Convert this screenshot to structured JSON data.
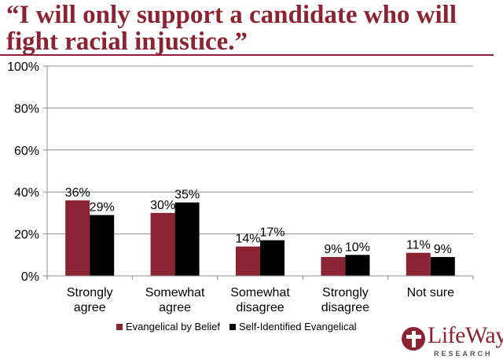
{
  "chart_data": {
    "type": "bar",
    "title": "“I will only support a candidate who will fight racial injustice.”",
    "categories": [
      [
        "Strongly",
        "agree"
      ],
      [
        "Somewhat",
        "agree"
      ],
      [
        "Somewhat",
        "disagree"
      ],
      [
        "Strongly",
        "disagree"
      ],
      [
        "Not sure"
      ]
    ],
    "series": [
      {
        "name": "Evangelical by Belief",
        "color": "#8b2332",
        "values": [
          36,
          30,
          14,
          9,
          11
        ],
        "labels": [
          "36%",
          "30%",
          "14%",
          "9%",
          "11%"
        ]
      },
      {
        "name": "Self-Identified Evangelical",
        "color": "#000000",
        "values": [
          29,
          35,
          17,
          10,
          9
        ],
        "labels": [
          "29%",
          "35%",
          "17%",
          "10%",
          "9%"
        ]
      }
    ],
    "yticks": [
      0,
      20,
      40,
      60,
      80,
      100
    ],
    "ytick_labels": [
      "0%",
      "20%",
      "40%",
      "60%",
      "80%",
      "100%"
    ],
    "ylim": [
      0,
      100
    ],
    "xlabel": "",
    "ylabel": "",
    "legend_position": "bottom",
    "grid": true
  },
  "branding": {
    "logo_name": "LifeWay",
    "logo_sub": "RESEARCH",
    "accent": "#8b2332"
  }
}
